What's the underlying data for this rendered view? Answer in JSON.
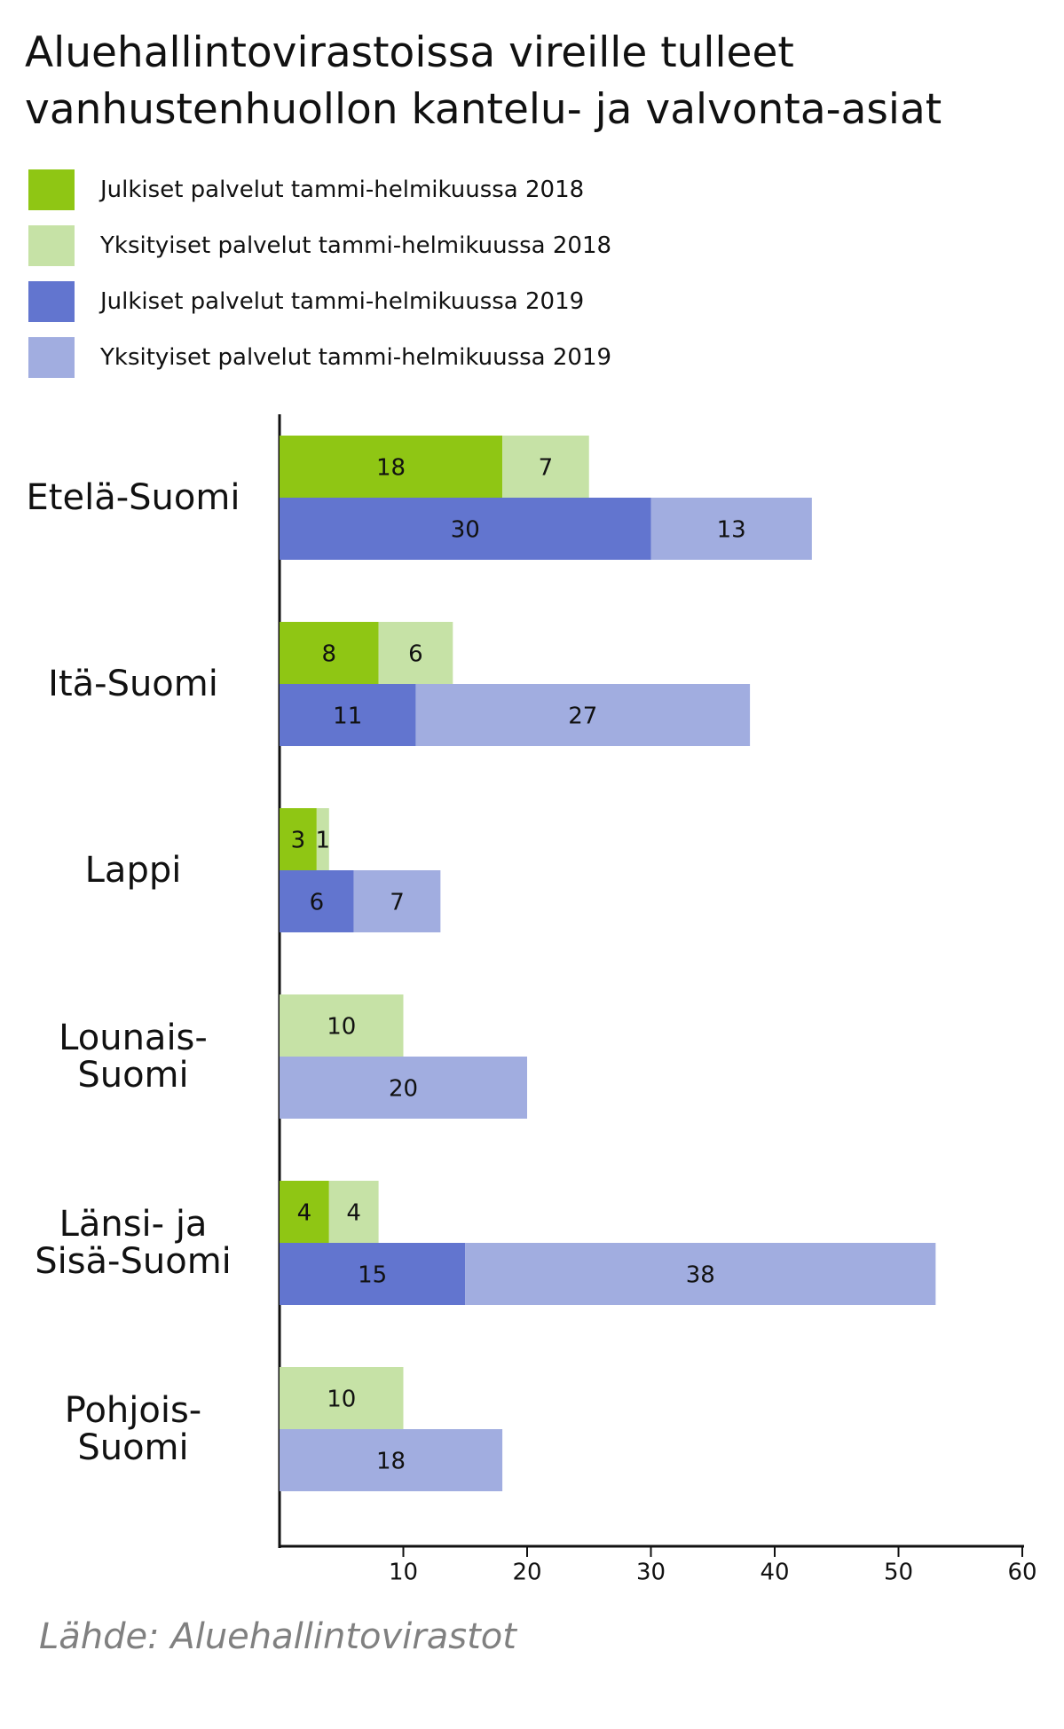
{
  "chart_data": {
    "type": "grouped-stacked-barh",
    "title": "Aluehallintovirastoissa vireille tulleet\nvanhustenhuollon kantelu- ja valvonta-asiat",
    "categories": [
      "Etelä-Suomi",
      "Itä-Suomi",
      "Lappi",
      "Lounais-\nSuomi",
      "Länsi- ja\nSisä-Suomi",
      "Pohjois-\nSuomi"
    ],
    "series": [
      {
        "name": "Julkiset palvelut tammi-helmikuussa 2018",
        "color": "#8fc614",
        "stack": "2018",
        "values": [
          18,
          8,
          3,
          null,
          4,
          null
        ]
      },
      {
        "name": "Yksityiset palvelut tammi-helmikuussa 2018",
        "color": "#c6e2a6",
        "stack": "2018",
        "values": [
          7,
          6,
          1,
          10,
          4,
          10
        ]
      },
      {
        "name": "Julkiset palvelut tammi-helmikuussa 2019",
        "color": "#6275cf",
        "stack": "2019",
        "values": [
          30,
          11,
          6,
          null,
          15,
          null
        ]
      },
      {
        "name": "Yksityiset palvelut tammi-helmikuussa 2019",
        "color": "#a1ade0",
        "stack": "2019",
        "values": [
          13,
          27,
          7,
          20,
          38,
          18
        ]
      }
    ],
    "xlim": [
      0,
      60
    ],
    "xticks": [
      10,
      20,
      30,
      40,
      50,
      60
    ],
    "source": "Lähde: Aluehallintovirastot"
  }
}
